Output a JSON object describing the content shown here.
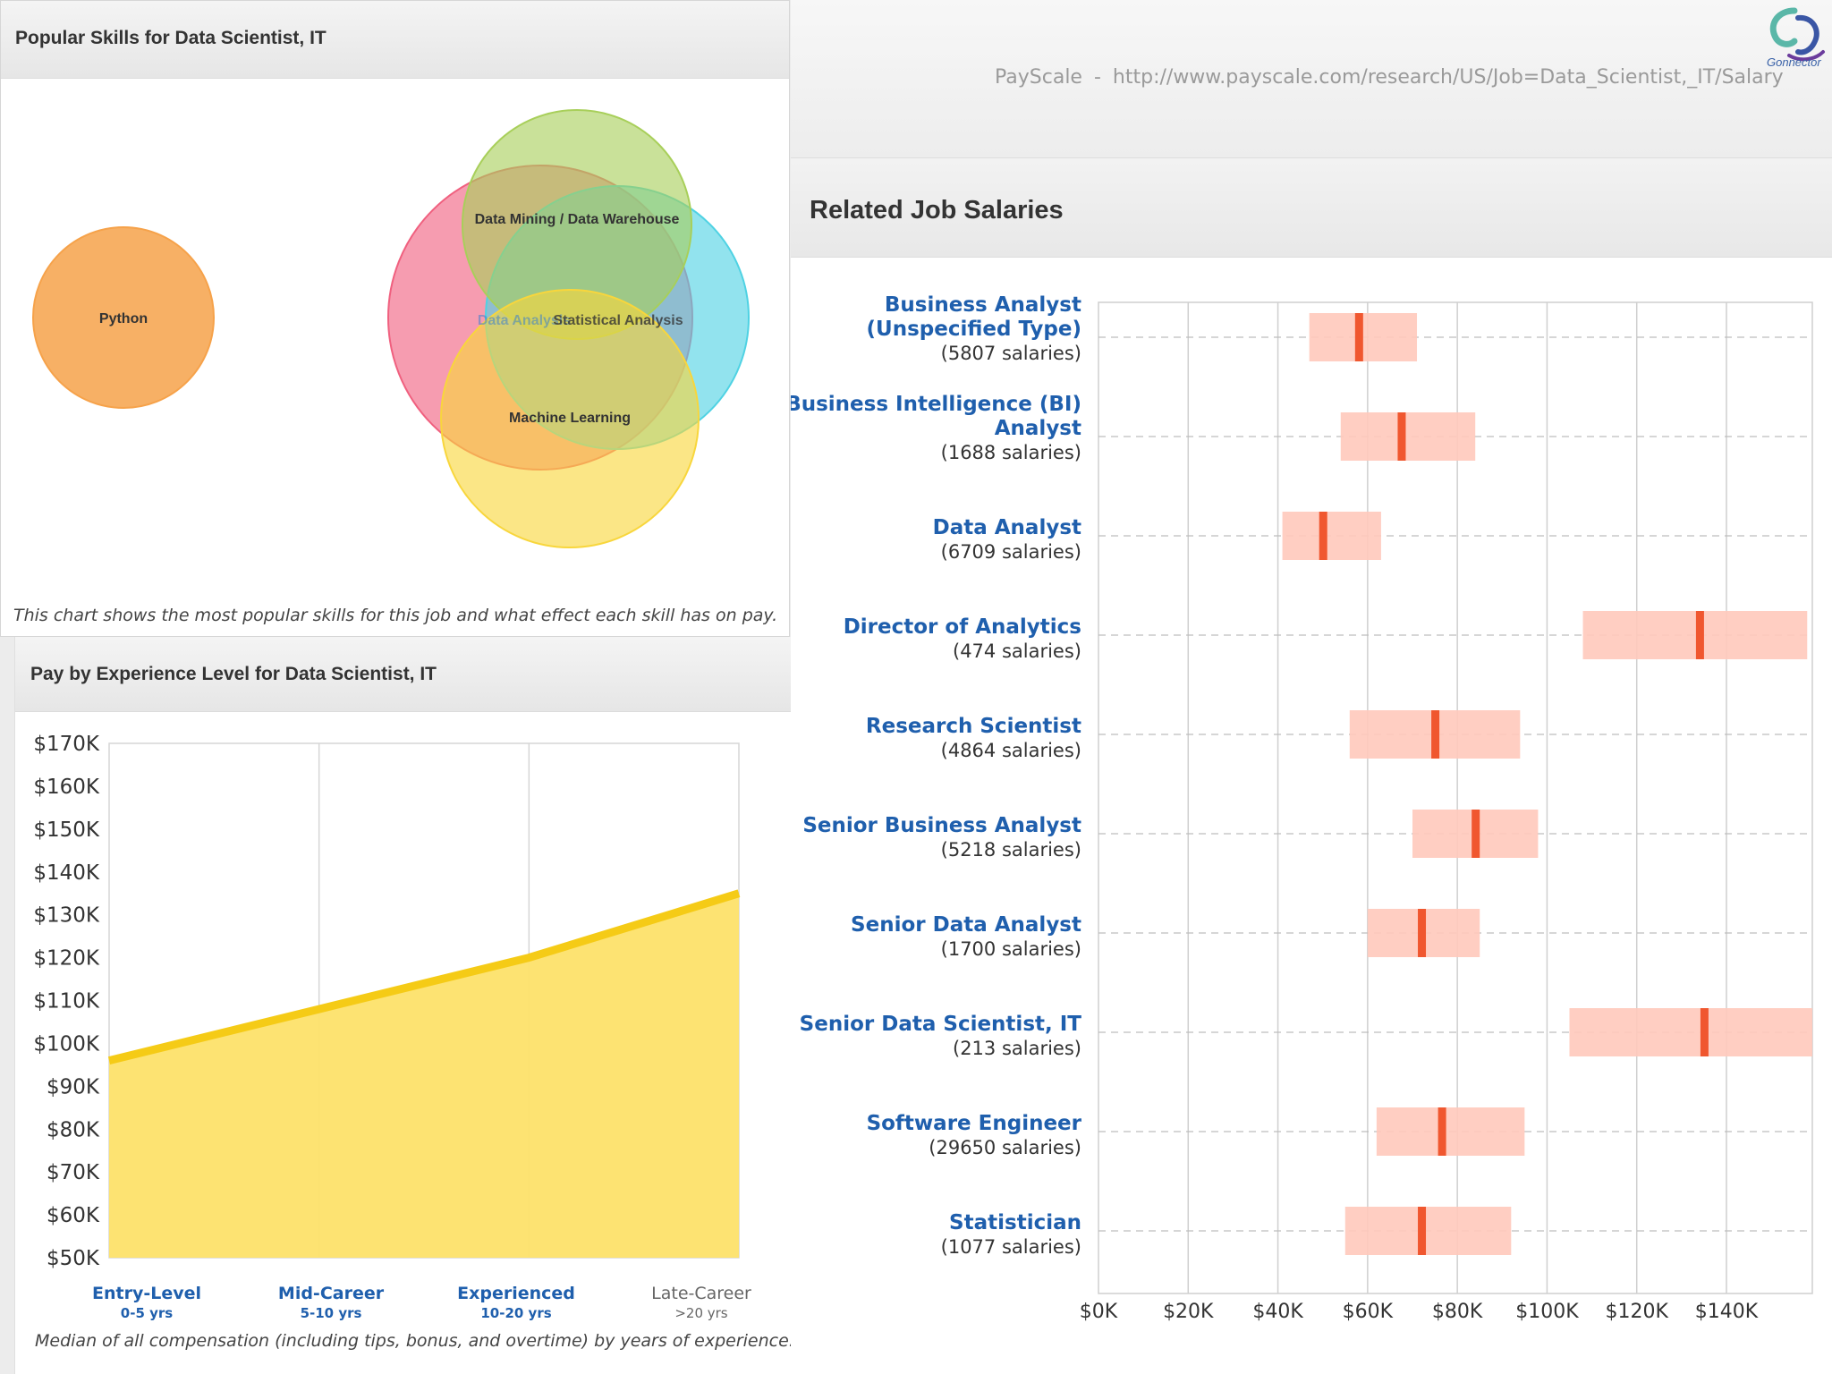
{
  "skills_panel": {
    "title": "Popular Skills for Data Scientist, IT",
    "caption": "This chart shows the most popular skills for this job and what effect each skill has on pay."
  },
  "experience_panel": {
    "title": "Pay by Experience Level for Data Scientist, IT",
    "caption": "Median of all compensation (including tips, bonus, and overtime) by years of experience."
  },
  "source": {
    "label": "PayScale",
    "separator": "-",
    "url": "http://www.payscale.com/research/US/Job=Data_Scientist,_IT/Salary"
  },
  "logo": {
    "text": "Gonnector",
    "icon": "swirl-logo-icon"
  },
  "related_panel": {
    "title": "Related Job Salaries"
  },
  "colors": {
    "python": "#f6a24a",
    "machine_learning": "#f8d63c",
    "data_mining": "#a8cf5a",
    "data_analysis": "#f0607f",
    "statistical_analysis": "#4fd2e3",
    "area_fill": "#fde26a",
    "area_line": "#f5cb16",
    "bar_range": "#ffc9bb",
    "bar_median": "#f0572f",
    "link_blue": "#1f5fad"
  },
  "chart_data": [
    {
      "type": "venn",
      "title": "Popular Skills for Data Scientist, IT",
      "sets": [
        {
          "name": "Python",
          "color": "#f6a24a"
        },
        {
          "name": "Data Mining / Data Warehouse",
          "color": "#a8cf5a"
        },
        {
          "name": "Data Analysis",
          "color": "#f0607f"
        },
        {
          "name": "Statistical Analysis",
          "color": "#4fd2e3"
        },
        {
          "name": "Machine Learning",
          "color": "#f8d63c"
        }
      ]
    },
    {
      "type": "area",
      "title": "Pay by Experience Level for Data Scientist, IT",
      "categories": [
        {
          "label": "Entry-Level",
          "sub": "0-5 yrs",
          "highlight": true
        },
        {
          "label": "Mid-Career",
          "sub": "5-10 yrs",
          "highlight": true
        },
        {
          "label": "Experienced",
          "sub": "10-20 yrs",
          "highlight": true
        },
        {
          "label": "Late-Career",
          "sub": ">20 yrs",
          "highlight": false
        }
      ],
      "x": [
        0,
        1,
        2,
        3
      ],
      "values": [
        96000,
        108000,
        120000,
        135000
      ],
      "ylim": [
        50000,
        170000
      ],
      "yticks": [
        "$170K",
        "$160K",
        "$150K",
        "$140K",
        "$130K",
        "$120K",
        "$110K",
        "$100K",
        "$90K",
        "$80K",
        "$70K",
        "$60K",
        "$50K"
      ],
      "grid": true
    },
    {
      "type": "range-bar",
      "title": "Related Job Salaries",
      "xlim": [
        0,
        160000
      ],
      "xticks": [
        "$0K",
        "$20K",
        "$40K",
        "$60K",
        "$80K",
        "$100K",
        "$120K",
        "$140K"
      ],
      "jobs": [
        {
          "name_lines": [
            "Business Analyst",
            "(Unspecified Type)"
          ],
          "count": "(5807 salaries)",
          "low": 47000,
          "high": 71000,
          "median": 58000
        },
        {
          "name_lines": [
            "Business Intelligence (BI)",
            "Analyst"
          ],
          "count": "(1688 salaries)",
          "low": 54000,
          "high": 84000,
          "median": 67500
        },
        {
          "name_lines": [
            "Data Analyst"
          ],
          "count": "(6709 salaries)",
          "low": 41000,
          "high": 63000,
          "median": 50000
        },
        {
          "name_lines": [
            "Director of Analytics"
          ],
          "count": "(474 salaries)",
          "low": 108000,
          "high": 158000,
          "median": 134000
        },
        {
          "name_lines": [
            "Research Scientist"
          ],
          "count": "(4864 salaries)",
          "low": 56000,
          "high": 94000,
          "median": 75000
        },
        {
          "name_lines": [
            "Senior Business Analyst"
          ],
          "count": "(5218 salaries)",
          "low": 70000,
          "high": 98000,
          "median": 84000
        },
        {
          "name_lines": [
            "Senior Data Analyst"
          ],
          "count": "(1700 salaries)",
          "low": 60000,
          "high": 85000,
          "median": 72000
        },
        {
          "name_lines": [
            "Senior Data Scientist, IT"
          ],
          "count": "(213 salaries)",
          "low": 105000,
          "high": 160000,
          "median": 135000
        },
        {
          "name_lines": [
            "Software Engineer"
          ],
          "count": "(29650 salaries)",
          "low": 62000,
          "high": 95000,
          "median": 76500
        },
        {
          "name_lines": [
            "Statistician"
          ],
          "count": "(1077 salaries)",
          "low": 55000,
          "high": 92000,
          "median": 72000
        }
      ]
    }
  ]
}
